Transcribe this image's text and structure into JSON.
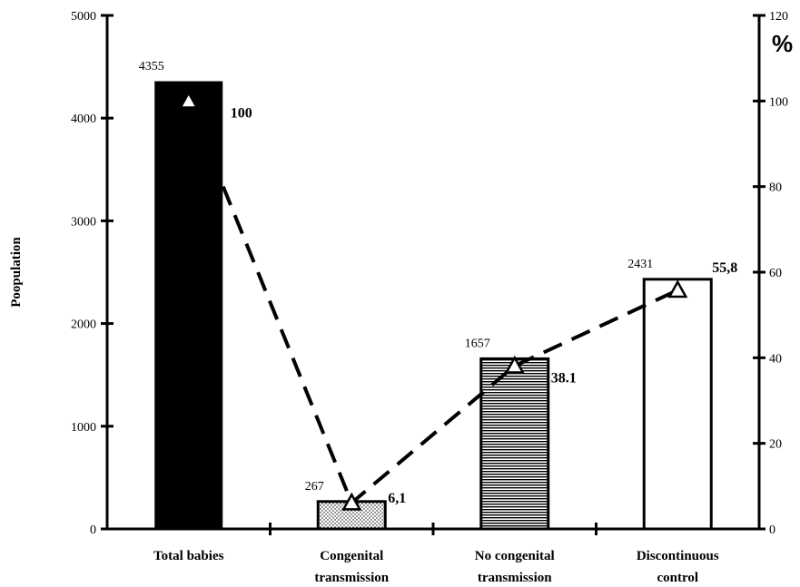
{
  "chart_data": {
    "type": "bar",
    "categories": [
      [
        "Total babies"
      ],
      [
        "Congenital",
        "transmission"
      ],
      [
        "No congenital",
        "transmission"
      ],
      [
        "Discontinuous",
        "control"
      ]
    ],
    "values": [
      4355,
      267,
      1657,
      2431
    ],
    "value_labels": [
      "4355",
      "267",
      "1657",
      "2431"
    ],
    "bar_fills": [
      "solid-black",
      "dotted",
      "horizontal-lines",
      "white"
    ],
    "ylabel": "Poopulation",
    "ylim": [
      0,
      5000
    ],
    "yticks": [
      0,
      1000,
      2000,
      3000,
      4000,
      5000
    ],
    "y2label": "%",
    "y2lim": [
      0,
      120
    ],
    "y2ticks": [
      0,
      20,
      40,
      60,
      80,
      100,
      120
    ],
    "line_series": {
      "style": "dashed",
      "marker": "triangle",
      "values": [
        100,
        6.1,
        38.1,
        55.8
      ],
      "labels": [
        "100",
        "6,1",
        "38.1",
        "55,8"
      ]
    },
    "grid": false
  }
}
